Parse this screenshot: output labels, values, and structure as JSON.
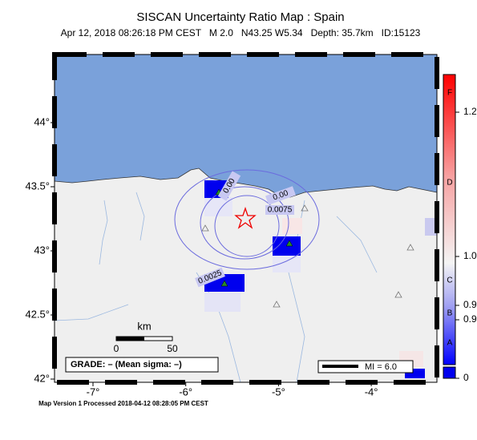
{
  "header": {
    "title": "SISCAN Uncertainty Ratio Map : Spain",
    "subtitle": "Apr 12, 2018 08:26:18 PM CEST   M 2.0   N43.25 W5.34   Depth: 35.7km   ID:15123"
  },
  "map": {
    "lat_ticks": [
      {
        "value": 44,
        "label": "44°"
      },
      {
        "value": 43.5,
        "label": "43.5°"
      },
      {
        "value": 43,
        "label": "43°"
      },
      {
        "value": 42.5,
        "label": "42.5°"
      },
      {
        "value": 42,
        "label": "42°"
      }
    ],
    "lon_ticks": [
      {
        "value": -7,
        "label": "-7°"
      },
      {
        "value": -6,
        "label": "-6°"
      },
      {
        "value": -5,
        "label": "-5°"
      },
      {
        "value": -4,
        "label": "-4°"
      }
    ],
    "contour_labels": [
      "0.00",
      "0.00",
      "0.0075",
      "0.0025"
    ],
    "scale_bar": {
      "unit": "km",
      "labels": [
        "0",
        "50"
      ]
    },
    "grade_legend": "GRADE: – (Mean sigma: –)",
    "mi_legend": "MI = 6.0"
  },
  "colorbar": {
    "grades": [
      "F",
      "D",
      "C",
      "B",
      "A"
    ],
    "labels": [
      "1.2",
      "1.0",
      "0.9",
      "0.9",
      "0"
    ]
  },
  "footer": "Map Version 1 Processed 2018-04-12 08:28:05 PM CEST"
}
